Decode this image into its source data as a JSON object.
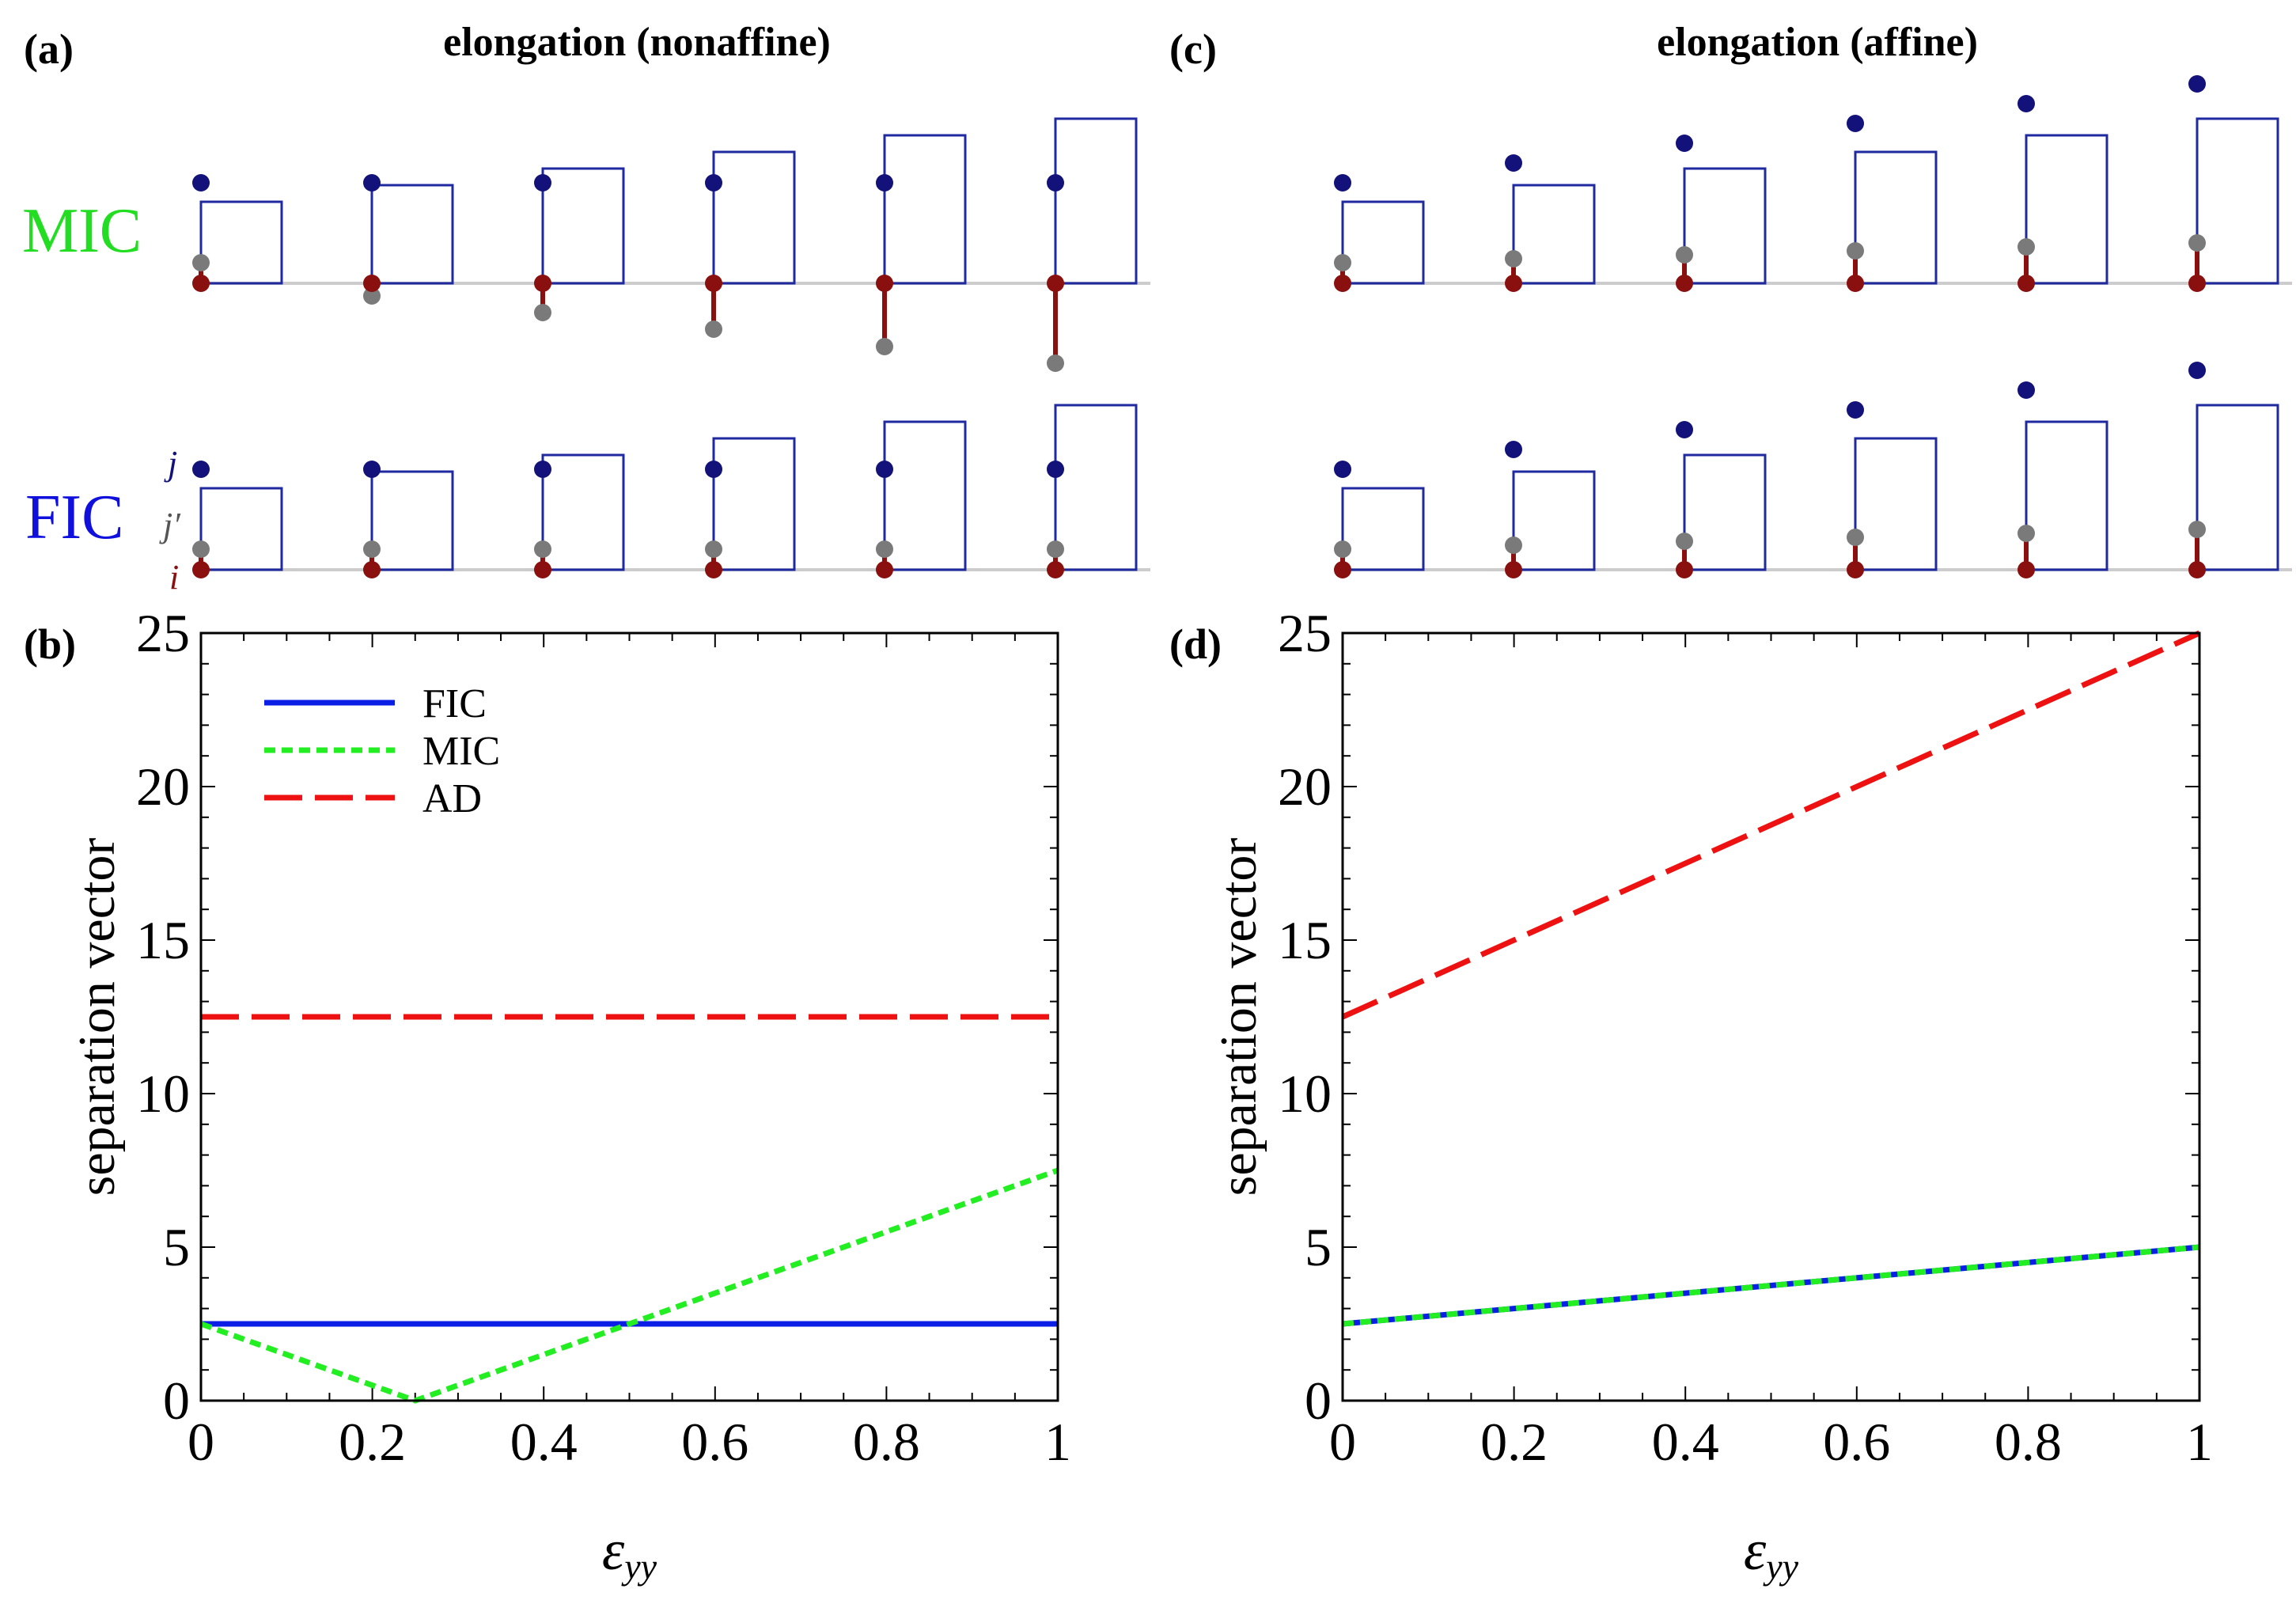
{
  "panels": {
    "a": "(a)",
    "b": "(b)",
    "c": "(c)",
    "d": "(d)"
  },
  "headers": {
    "left": "elongation (nonaffine)",
    "right": "elongation (affine)"
  },
  "rows": {
    "mic": "MIC",
    "fic": "FIC"
  },
  "atoms": {
    "j": "j",
    "jprime": "j′",
    "i": "i"
  },
  "colors": {
    "fic": "#0a1ee6",
    "mic": "#22ee22",
    "ad": "#ee1111",
    "box": "#1f2aa0",
    "atom_j": "#12127a",
    "atom_jp": "#7a7a7a",
    "atom_i": "#8a1010",
    "mic_label": "#22dd22",
    "fic_label": "#1010dd"
  },
  "chart_data": [
    {
      "panel": "(b)",
      "type": "line",
      "xlabel": "ε_yy",
      "ylabel": "separation vector",
      "xlim": [
        0,
        1
      ],
      "ylim": [
        0,
        25
      ],
      "xticks": [
        "0",
        "0.2",
        "0.4",
        "0.6",
        "0.8",
        "1"
      ],
      "yticks": [
        "0",
        "5",
        "10",
        "15",
        "20",
        "25"
      ],
      "legend": "top-left",
      "series": [
        {
          "name": "FIC",
          "style": "solid",
          "x": [
            0,
            1
          ],
          "y": [
            2.5,
            2.5
          ]
        },
        {
          "name": "MIC",
          "style": "dotted",
          "x": [
            0,
            0.25,
            0.5,
            1
          ],
          "y": [
            2.5,
            0,
            2.5,
            7.5
          ]
        },
        {
          "name": "AD",
          "style": "dashed",
          "x": [
            0,
            1
          ],
          "y": [
            12.5,
            12.5
          ]
        }
      ]
    },
    {
      "panel": "(d)",
      "type": "line",
      "xlabel": "ε_yy",
      "ylabel": "separation vector",
      "xlim": [
        0,
        1
      ],
      "ylim": [
        0,
        25
      ],
      "xticks": [
        "0",
        "0.2",
        "0.4",
        "0.6",
        "0.8",
        "1"
      ],
      "yticks": [
        "0",
        "5",
        "10",
        "15",
        "20",
        "25"
      ],
      "series": [
        {
          "name": "FIC",
          "style": "solid",
          "x": [
            0,
            1
          ],
          "y": [
            2.5,
            5
          ]
        },
        {
          "name": "MIC",
          "style": "dotted",
          "x": [
            0,
            1
          ],
          "y": [
            2.5,
            5
          ]
        },
        {
          "name": "AD",
          "style": "dashed",
          "x": [
            0,
            1
          ],
          "y": [
            12.5,
            25
          ]
        }
      ]
    }
  ]
}
